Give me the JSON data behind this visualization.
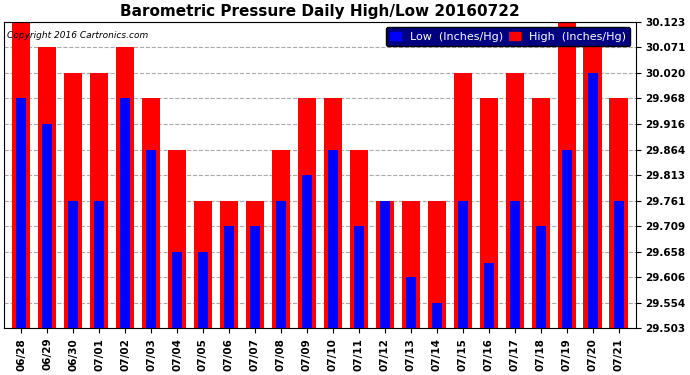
{
  "title": "Barometric Pressure Daily High/Low 20160722",
  "copyright": "Copyright 2016 Cartronics.com",
  "legend_low": "Low  (Inches/Hg)",
  "legend_high": "High  (Inches/Hg)",
  "dates": [
    "06/28",
    "06/29",
    "06/30",
    "07/01",
    "07/02",
    "07/03",
    "07/04",
    "07/05",
    "07/06",
    "07/07",
    "07/08",
    "07/09",
    "07/10",
    "07/11",
    "07/12",
    "07/13",
    "07/14",
    "07/15",
    "07/16",
    "07/17",
    "07/18",
    "07/19",
    "07/20",
    "07/21"
  ],
  "low": [
    29.968,
    29.916,
    29.761,
    29.761,
    29.968,
    29.864,
    29.658,
    29.658,
    29.709,
    29.709,
    29.761,
    29.813,
    29.864,
    29.709,
    29.761,
    29.606,
    29.554,
    29.761,
    29.634,
    29.761,
    29.709,
    29.864,
    30.02,
    29.761
  ],
  "high": [
    30.123,
    30.071,
    30.02,
    30.02,
    30.071,
    29.968,
    29.864,
    29.761,
    29.761,
    29.761,
    29.864,
    29.968,
    29.968,
    29.864,
    29.761,
    29.761,
    29.761,
    30.02,
    29.968,
    30.02,
    29.968,
    30.123,
    30.071,
    29.968
  ],
  "ymin": 29.503,
  "ymax": 30.123,
  "yticks": [
    29.503,
    29.554,
    29.606,
    29.658,
    29.709,
    29.761,
    29.813,
    29.864,
    29.916,
    29.968,
    30.02,
    30.071,
    30.123
  ],
  "bar_color_low": "#0000ff",
  "bar_color_high": "#ff0000",
  "bg_color": "#ffffff",
  "grid_color": "#aaaaaa",
  "title_fontsize": 11,
  "tick_fontsize": 7.5,
  "legend_fontsize": 8
}
